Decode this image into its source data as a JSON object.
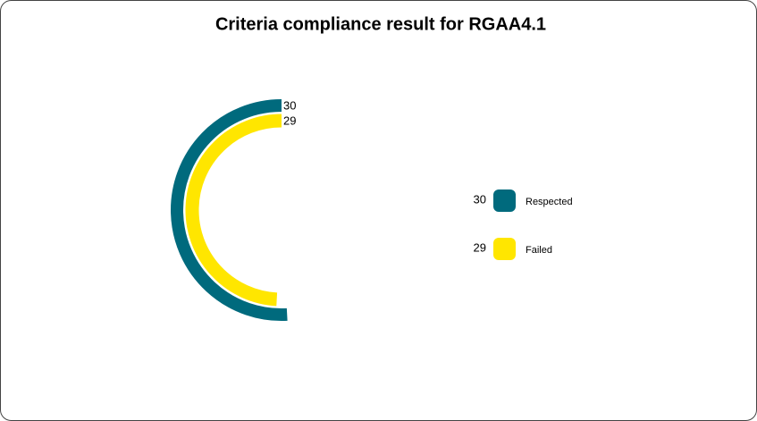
{
  "chart_data": {
    "type": "radialBar",
    "title": "Criteria compliance result for RGAA4.1",
    "categories": [
      "Respected",
      "Failed"
    ],
    "values": [
      30,
      29
    ],
    "colors": [
      "#006a7d",
      "#ffe600"
    ],
    "legend": "right"
  }
}
